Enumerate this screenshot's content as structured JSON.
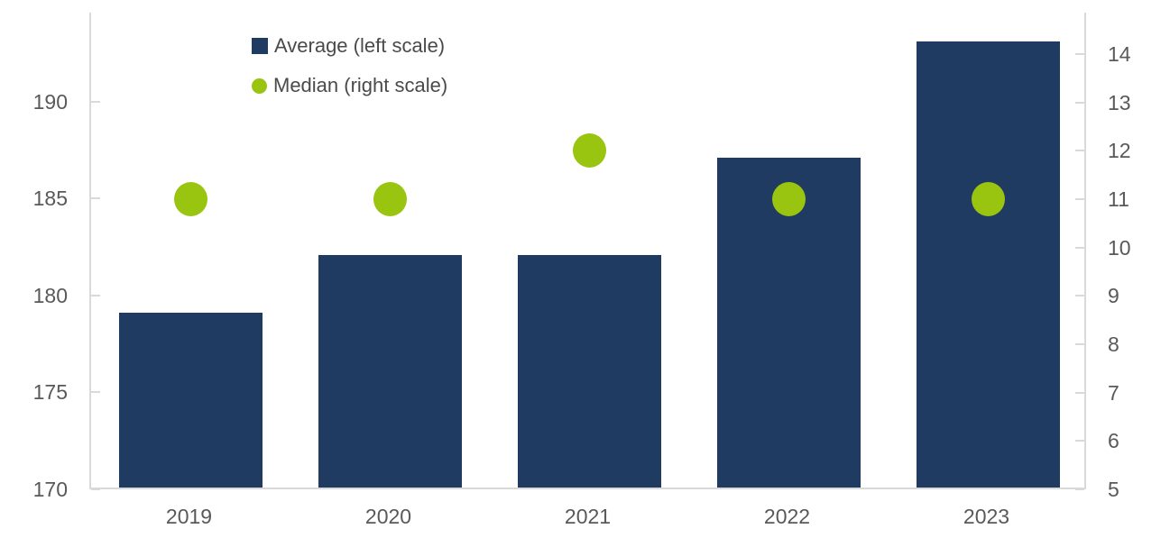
{
  "chart_data": {
    "type": "bar",
    "subtype": "dual-axis bar + scatter",
    "categories": [
      "2019",
      "2020",
      "2021",
      "2022",
      "2023"
    ],
    "series": [
      {
        "name": "Average (left scale)",
        "type": "bar",
        "axis": "left",
        "marker": "square",
        "color": "#203b61",
        "values": [
          179,
          182,
          182,
          187,
          193
        ]
      },
      {
        "name": "Median (right scale)",
        "type": "scatter",
        "axis": "right",
        "marker": "circle",
        "color": "#99c410",
        "values": [
          11,
          11,
          12,
          11,
          11
        ]
      }
    ],
    "left_axis": {
      "min": 170,
      "max": 194.6,
      "ticks": [
        170,
        175,
        180,
        185,
        190
      ]
    },
    "right_axis": {
      "min": 5,
      "max": 14.86,
      "ticks": [
        5,
        6,
        7,
        8,
        9,
        10,
        11,
        12,
        13,
        14
      ]
    },
    "title": "",
    "xlabel": "",
    "ylabel": "",
    "grid": false,
    "legend_position": "top-left-inside"
  },
  "colors": {
    "bar": "#203b61",
    "dot": "#99c410",
    "axis_line": "#d9d9d9",
    "tick_label": "#595959",
    "legend_text": "#4a4a4a",
    "background": "#ffffff"
  }
}
